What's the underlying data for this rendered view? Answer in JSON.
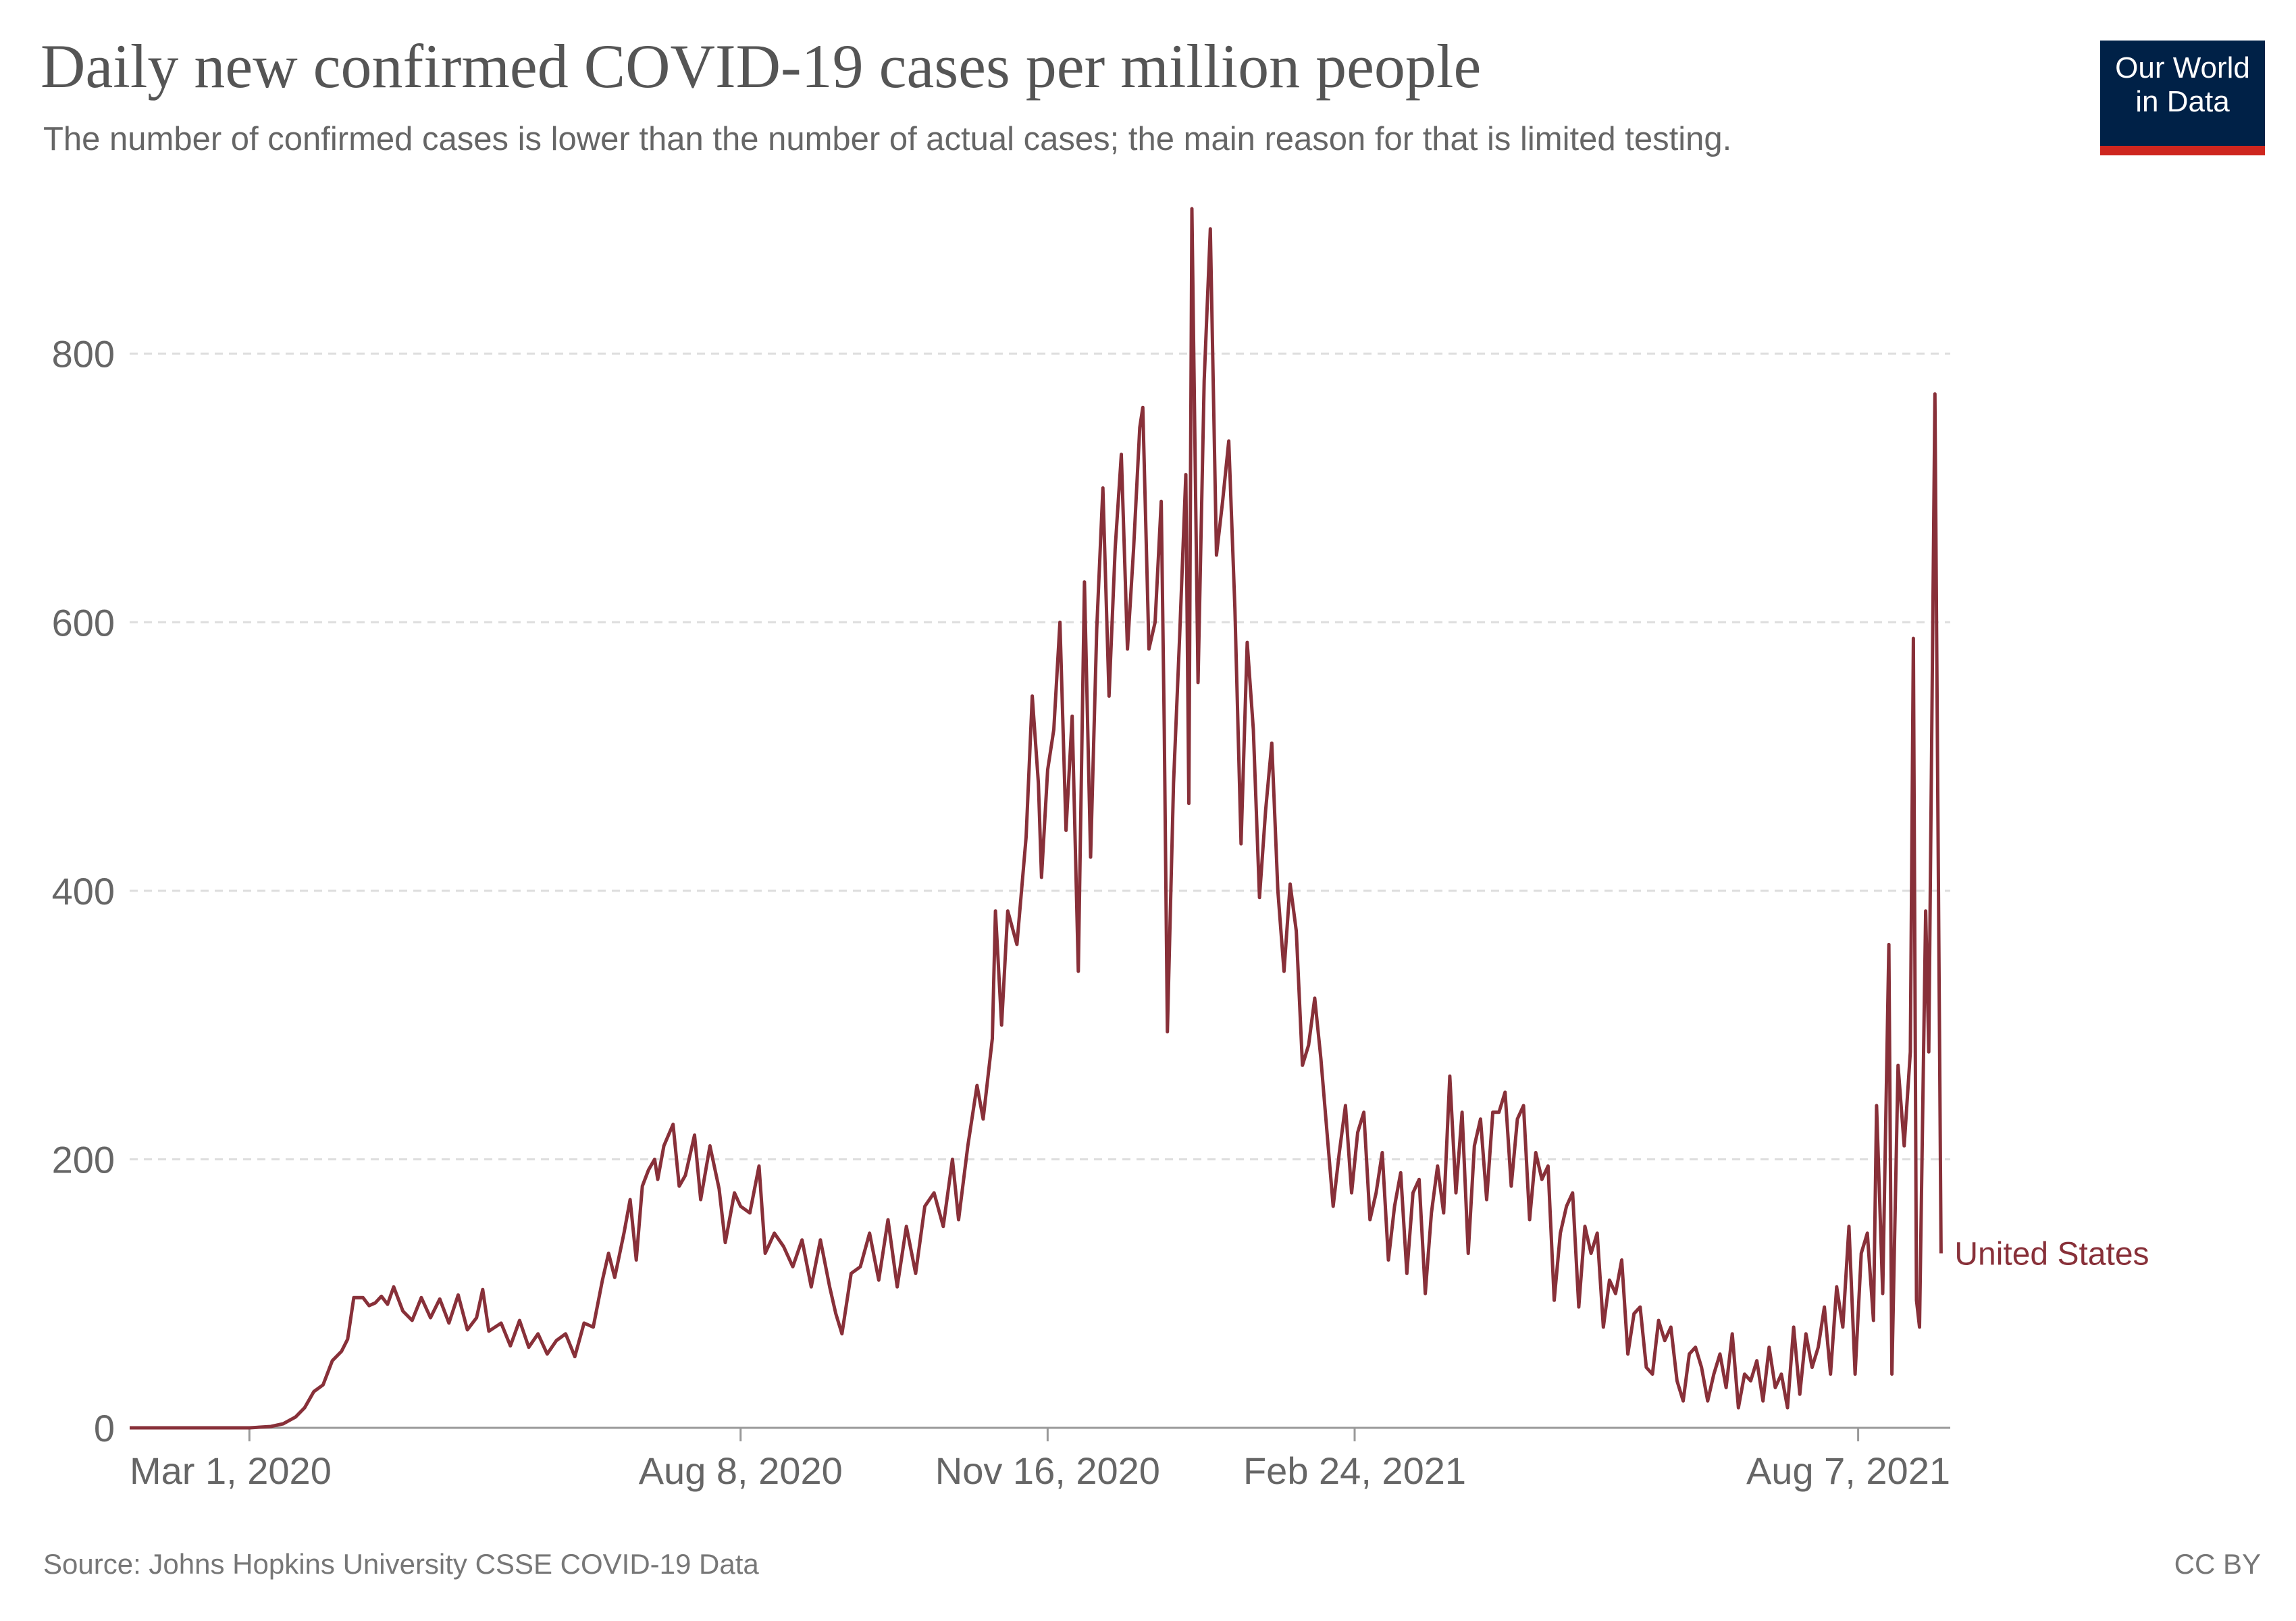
{
  "header": {
    "title": "Daily new confirmed COVID-19 cases per million people",
    "subtitle": "The number of confirmed cases is lower than the number of actual cases; the main reason for that is limited testing."
  },
  "logo": {
    "line1": "Our World",
    "line2": "in Data",
    "bg_color": "#002147",
    "accent_color": "#ce261e"
  },
  "footer": {
    "source": "Source: Johns Hopkins University CSSE COVID-19 Data",
    "license": "CC BY"
  },
  "chart_data": {
    "type": "line",
    "title": "Daily new confirmed COVID-19 cases per million people",
    "xlabel": "",
    "ylabel": "",
    "ylim": [
      0,
      910
    ],
    "x_range": [
      "2020-01-22",
      "2021-09-06"
    ],
    "y_ticks": [
      0,
      200,
      400,
      600,
      800
    ],
    "x_ticks": [
      {
        "date": "2020-03-01",
        "label": "Mar 1, 2020"
      },
      {
        "date": "2020-08-08",
        "label": "Aug 8, 2020"
      },
      {
        "date": "2020-11-16",
        "label": "Nov 16, 2020"
      },
      {
        "date": "2021-02-24",
        "label": "Feb 24, 2021"
      },
      {
        "date": "2021-08-07",
        "label": "Aug 7, 2021"
      }
    ],
    "grid": "horizontal dashed",
    "line_color": "#883039",
    "series": [
      {
        "name": "United States",
        "points": [
          [
            "2020-01-22",
            0
          ],
          [
            "2020-02-15",
            0
          ],
          [
            "2020-03-01",
            0
          ],
          [
            "2020-03-08",
            1
          ],
          [
            "2020-03-12",
            3
          ],
          [
            "2020-03-16",
            8
          ],
          [
            "2020-03-19",
            15
          ],
          [
            "2020-03-22",
            27
          ],
          [
            "2020-03-25",
            32
          ],
          [
            "2020-03-28",
            50
          ],
          [
            "2020-03-31",
            57
          ],
          [
            "2020-04-02",
            66
          ],
          [
            "2020-04-04",
            97
          ],
          [
            "2020-04-07",
            97
          ],
          [
            "2020-04-09",
            91
          ],
          [
            "2020-04-11",
            93
          ],
          [
            "2020-04-13",
            98
          ],
          [
            "2020-04-15",
            92
          ],
          [
            "2020-04-17",
            105
          ],
          [
            "2020-04-20",
            87
          ],
          [
            "2020-04-23",
            80
          ],
          [
            "2020-04-26",
            97
          ],
          [
            "2020-04-29",
            82
          ],
          [
            "2020-05-02",
            96
          ],
          [
            "2020-05-05",
            78
          ],
          [
            "2020-05-08",
            99
          ],
          [
            "2020-05-11",
            73
          ],
          [
            "2020-05-14",
            82
          ],
          [
            "2020-05-16",
            103
          ],
          [
            "2020-05-18",
            72
          ],
          [
            "2020-05-22",
            78
          ],
          [
            "2020-05-25",
            61
          ],
          [
            "2020-05-28",
            80
          ],
          [
            "2020-05-31",
            60
          ],
          [
            "2020-06-03",
            70
          ],
          [
            "2020-06-06",
            55
          ],
          [
            "2020-06-09",
            65
          ],
          [
            "2020-06-12",
            70
          ],
          [
            "2020-06-15",
            53
          ],
          [
            "2020-06-18",
            78
          ],
          [
            "2020-06-21",
            75
          ],
          [
            "2020-06-24",
            110
          ],
          [
            "2020-06-26",
            130
          ],
          [
            "2020-06-28",
            112
          ],
          [
            "2020-07-01",
            145
          ],
          [
            "2020-07-03",
            170
          ],
          [
            "2020-07-05",
            125
          ],
          [
            "2020-07-07",
            180
          ],
          [
            "2020-07-09",
            192
          ],
          [
            "2020-07-11",
            200
          ],
          [
            "2020-07-12",
            185
          ],
          [
            "2020-07-14",
            210
          ],
          [
            "2020-07-17",
            226
          ],
          [
            "2020-07-19",
            180
          ],
          [
            "2020-07-21",
            188
          ],
          [
            "2020-07-24",
            218
          ],
          [
            "2020-07-26",
            170
          ],
          [
            "2020-07-29",
            210
          ],
          [
            "2020-08-01",
            178
          ],
          [
            "2020-08-03",
            138
          ],
          [
            "2020-08-06",
            175
          ],
          [
            "2020-08-08",
            165
          ],
          [
            "2020-08-11",
            160
          ],
          [
            "2020-08-14",
            195
          ],
          [
            "2020-08-16",
            130
          ],
          [
            "2020-08-19",
            145
          ],
          [
            "2020-08-22",
            135
          ],
          [
            "2020-08-25",
            120
          ],
          [
            "2020-08-28",
            140
          ],
          [
            "2020-08-31",
            105
          ],
          [
            "2020-09-03",
            140
          ],
          [
            "2020-09-06",
            105
          ],
          [
            "2020-09-08",
            85
          ],
          [
            "2020-09-10",
            70
          ],
          [
            "2020-09-13",
            115
          ],
          [
            "2020-09-16",
            120
          ],
          [
            "2020-09-19",
            145
          ],
          [
            "2020-09-22",
            110
          ],
          [
            "2020-09-25",
            155
          ],
          [
            "2020-09-28",
            105
          ],
          [
            "2020-10-01",
            150
          ],
          [
            "2020-10-04",
            115
          ],
          [
            "2020-10-07",
            165
          ],
          [
            "2020-10-10",
            175
          ],
          [
            "2020-10-13",
            150
          ],
          [
            "2020-10-16",
            200
          ],
          [
            "2020-10-18",
            155
          ],
          [
            "2020-10-21",
            210
          ],
          [
            "2020-10-24",
            255
          ],
          [
            "2020-10-26",
            230
          ],
          [
            "2020-10-29",
            290
          ],
          [
            "2020-10-30",
            385
          ],
          [
            "2020-11-01",
            300
          ],
          [
            "2020-11-03",
            385
          ],
          [
            "2020-11-06",
            360
          ],
          [
            "2020-11-09",
            440
          ],
          [
            "2020-11-11",
            545
          ],
          [
            "2020-11-13",
            480
          ],
          [
            "2020-11-14",
            410
          ],
          [
            "2020-11-16",
            490
          ],
          [
            "2020-11-18",
            520
          ],
          [
            "2020-11-20",
            600
          ],
          [
            "2020-11-22",
            445
          ],
          [
            "2020-11-24",
            530
          ],
          [
            "2020-11-26",
            340
          ],
          [
            "2020-11-28",
            630
          ],
          [
            "2020-11-30",
            425
          ],
          [
            "2020-12-02",
            595
          ],
          [
            "2020-12-04",
            700
          ],
          [
            "2020-12-06",
            545
          ],
          [
            "2020-12-08",
            655
          ],
          [
            "2020-12-10",
            725
          ],
          [
            "2020-12-12",
            580
          ],
          [
            "2020-12-14",
            655
          ],
          [
            "2020-12-16",
            745
          ],
          [
            "2020-12-17",
            760
          ],
          [
            "2020-12-19",
            580
          ],
          [
            "2020-12-21",
            600
          ],
          [
            "2020-12-23",
            690
          ],
          [
            "2020-12-24",
            520
          ],
          [
            "2020-12-25",
            295
          ],
          [
            "2020-12-27",
            480
          ],
          [
            "2020-12-29",
            590
          ],
          [
            "2020-12-31",
            710
          ],
          [
            "2021-01-01",
            465
          ],
          [
            "2021-01-02",
            908
          ],
          [
            "2021-01-04",
            555
          ],
          [
            "2021-01-06",
            780
          ],
          [
            "2021-01-08",
            893
          ],
          [
            "2021-01-10",
            650
          ],
          [
            "2021-01-12",
            690
          ],
          [
            "2021-01-14",
            735
          ],
          [
            "2021-01-16",
            610
          ],
          [
            "2021-01-18",
            435
          ],
          [
            "2021-01-20",
            585
          ],
          [
            "2021-01-22",
            520
          ],
          [
            "2021-01-24",
            395
          ],
          [
            "2021-01-26",
            460
          ],
          [
            "2021-01-28",
            510
          ],
          [
            "2021-01-30",
            400
          ],
          [
            "2021-02-01",
            340
          ],
          [
            "2021-02-03",
            405
          ],
          [
            "2021-02-05",
            370
          ],
          [
            "2021-02-07",
            270
          ],
          [
            "2021-02-09",
            285
          ],
          [
            "2021-02-11",
            320
          ],
          [
            "2021-02-13",
            275
          ],
          [
            "2021-02-15",
            220
          ],
          [
            "2021-02-17",
            165
          ],
          [
            "2021-02-19",
            205
          ],
          [
            "2021-02-21",
            240
          ],
          [
            "2021-02-23",
            175
          ],
          [
            "2021-02-25",
            220
          ],
          [
            "2021-02-27",
            235
          ],
          [
            "2021-03-01",
            155
          ],
          [
            "2021-03-03",
            175
          ],
          [
            "2021-03-05",
            205
          ],
          [
            "2021-03-07",
            125
          ],
          [
            "2021-03-09",
            165
          ],
          [
            "2021-03-11",
            190
          ],
          [
            "2021-03-13",
            115
          ],
          [
            "2021-03-15",
            175
          ],
          [
            "2021-03-17",
            185
          ],
          [
            "2021-03-19",
            100
          ],
          [
            "2021-03-21",
            160
          ],
          [
            "2021-03-23",
            195
          ],
          [
            "2021-03-25",
            160
          ],
          [
            "2021-03-27",
            262
          ],
          [
            "2021-03-29",
            175
          ],
          [
            "2021-03-31",
            235
          ],
          [
            "2021-04-02",
            130
          ],
          [
            "2021-04-04",
            210
          ],
          [
            "2021-04-06",
            230
          ],
          [
            "2021-04-08",
            170
          ],
          [
            "2021-04-10",
            235
          ],
          [
            "2021-04-12",
            235
          ],
          [
            "2021-04-14",
            250
          ],
          [
            "2021-04-16",
            180
          ],
          [
            "2021-04-18",
            230
          ],
          [
            "2021-04-20",
            240
          ],
          [
            "2021-04-22",
            155
          ],
          [
            "2021-04-24",
            205
          ],
          [
            "2021-04-26",
            185
          ],
          [
            "2021-04-28",
            195
          ],
          [
            "2021-04-30",
            95
          ],
          [
            "2021-05-02",
            145
          ],
          [
            "2021-05-04",
            165
          ],
          [
            "2021-05-06",
            175
          ],
          [
            "2021-05-08",
            90
          ],
          [
            "2021-05-10",
            150
          ],
          [
            "2021-05-12",
            130
          ],
          [
            "2021-05-14",
            145
          ],
          [
            "2021-05-16",
            75
          ],
          [
            "2021-05-18",
            110
          ],
          [
            "2021-05-20",
            100
          ],
          [
            "2021-05-22",
            125
          ],
          [
            "2021-05-24",
            55
          ],
          [
            "2021-05-26",
            85
          ],
          [
            "2021-05-28",
            90
          ],
          [
            "2021-05-30",
            45
          ],
          [
            "2021-06-01",
            40
          ],
          [
            "2021-06-03",
            80
          ],
          [
            "2021-06-05",
            65
          ],
          [
            "2021-06-07",
            75
          ],
          [
            "2021-06-09",
            35
          ],
          [
            "2021-06-11",
            20
          ],
          [
            "2021-06-13",
            55
          ],
          [
            "2021-06-15",
            60
          ],
          [
            "2021-06-17",
            45
          ],
          [
            "2021-06-19",
            20
          ],
          [
            "2021-06-21",
            40
          ],
          [
            "2021-06-23",
            55
          ],
          [
            "2021-06-25",
            30
          ],
          [
            "2021-06-27",
            70
          ],
          [
            "2021-06-29",
            15
          ],
          [
            "2021-07-01",
            40
          ],
          [
            "2021-07-03",
            35
          ],
          [
            "2021-07-05",
            50
          ],
          [
            "2021-07-07",
            20
          ],
          [
            "2021-07-09",
            60
          ],
          [
            "2021-07-11",
            30
          ],
          [
            "2021-07-13",
            40
          ],
          [
            "2021-07-15",
            15
          ],
          [
            "2021-07-17",
            75
          ],
          [
            "2021-07-19",
            25
          ],
          [
            "2021-07-21",
            70
          ],
          [
            "2021-07-23",
            45
          ],
          [
            "2021-07-25",
            60
          ],
          [
            "2021-07-27",
            90
          ],
          [
            "2021-07-29",
            40
          ],
          [
            "2021-07-31",
            105
          ],
          [
            "2021-08-02",
            75
          ],
          [
            "2021-08-04",
            150
          ],
          [
            "2021-08-06",
            40
          ],
          [
            "2021-08-08",
            130
          ],
          [
            "2021-08-10",
            145
          ],
          [
            "2021-08-12",
            80
          ],
          [
            "2021-08-13",
            240
          ],
          [
            "2021-08-15",
            100
          ],
          [
            "2021-08-17",
            360
          ],
          [
            "2021-08-18",
            40
          ],
          [
            "2021-08-20",
            270
          ],
          [
            "2021-08-22",
            210
          ],
          [
            "2021-08-24",
            280
          ],
          [
            "2021-08-25",
            588
          ],
          [
            "2021-08-26",
            95
          ],
          [
            "2021-08-27",
            75
          ],
          [
            "2021-08-29",
            385
          ],
          [
            "2021-08-30",
            280
          ],
          [
            "2021-09-01",
            770
          ],
          [
            "2021-09-03",
            130
          ]
        ]
      }
    ]
  }
}
